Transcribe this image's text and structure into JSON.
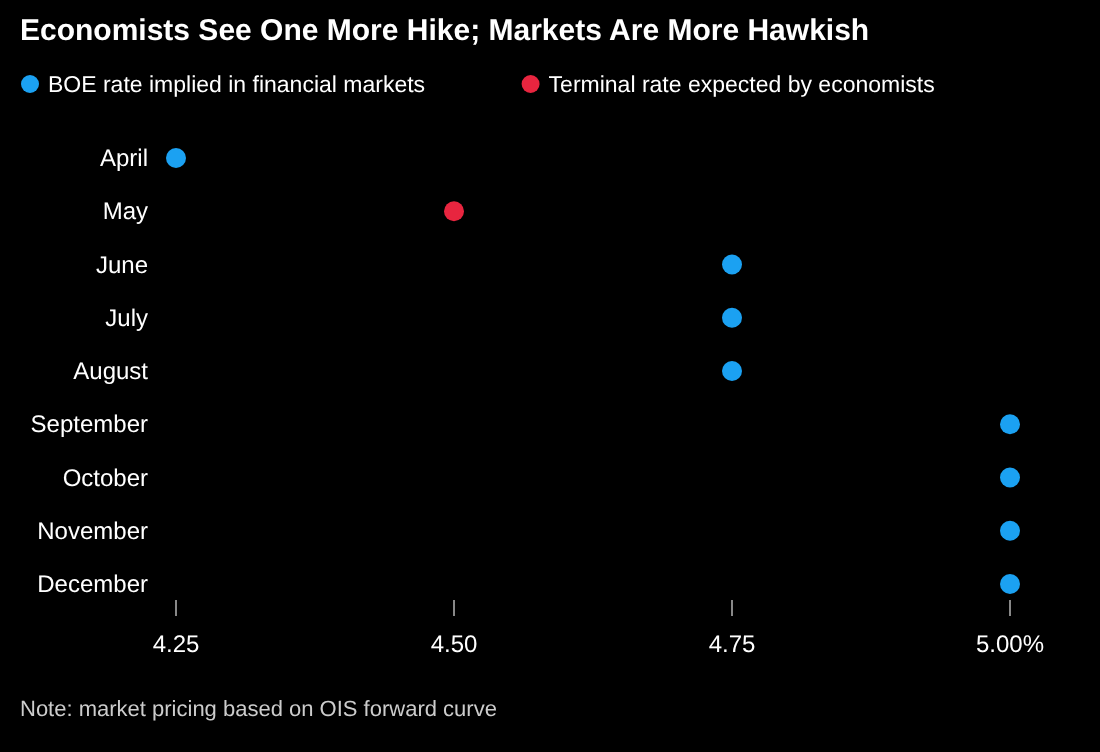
{
  "chart_data": {
    "type": "scatter",
    "orientation": "horizontal",
    "title": "Economists See One More Hike; Markets Are More Hawkish",
    "categories": [
      "April",
      "May",
      "June",
      "July",
      "August",
      "September",
      "October",
      "November",
      "December"
    ],
    "series": [
      {
        "name": "BOE rate implied in financial markets",
        "color": "#1ba1f2",
        "values": [
          4.25,
          null,
          4.75,
          4.75,
          4.75,
          5.0,
          5.0,
          5.0,
          5.0
        ]
      },
      {
        "name": "Terminal rate expected by economists",
        "color": "#e8253f",
        "values": [
          null,
          4.5,
          null,
          null,
          null,
          null,
          null,
          null,
          null
        ]
      }
    ],
    "xlim": [
      4.25,
      5.0
    ],
    "xticks": [
      4.25,
      {
        "value": 4.5,
        "label": "4.50"
      },
      4.75,
      {
        "value": 5.0,
        "label": "5.00%"
      }
    ],
    "marker": "circle",
    "legend": "top left",
    "annotations": [
      "Note: market pricing based on OIS forward curve"
    ]
  }
}
